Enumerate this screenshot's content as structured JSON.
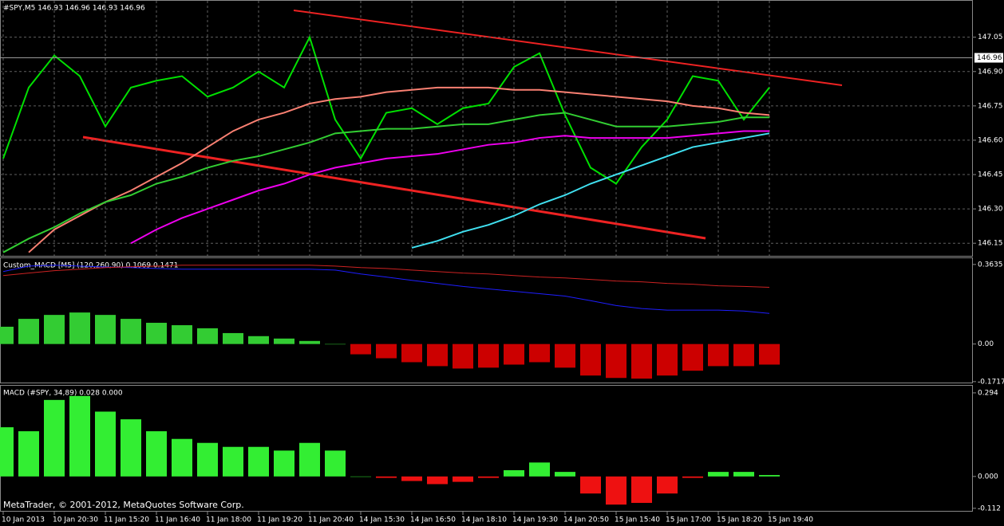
{
  "chart_data": [
    {
      "type": "line",
      "title": "#SPY,M5  146.93 146.96 146.93 146.96",
      "categories": [
        "10 Jan 2013",
        null,
        "10 Jan 20:30",
        null,
        "11 Jan 15:20",
        null,
        "11 Jan 16:40",
        null,
        "11 Jan 18:00",
        null,
        "11 Jan 19:20",
        null,
        "11 Jan 20:40",
        null,
        "14 Jan 15:30",
        null,
        "14 Jan 16:50",
        null,
        "14 Jan 18:10",
        null,
        "14 Jan 19:30",
        null,
        "14 Jan 20:50",
        null,
        "15 Jan 15:40",
        null,
        "15 Jan 17:00",
        null,
        "15 Jan 18:20",
        null,
        "15 Jan 19:40"
      ],
      "series": [
        {
          "color": "#00e000",
          "values": [
            146.52,
            146.83,
            146.97,
            146.88,
            146.66,
            146.83,
            146.86,
            146.88,
            146.79,
            146.83,
            146.9,
            146.83,
            147.05,
            146.69,
            146.52,
            146.72,
            146.74,
            146.67,
            146.74,
            146.76,
            146.92,
            146.98,
            146.71,
            146.48,
            146.41,
            146.57,
            146.69,
            146.88,
            146.86,
            146.69,
            146.83
          ]
        },
        {
          "color": "#fa8072",
          "values": [
            null,
            146.11,
            146.21,
            146.27,
            146.33,
            146.38,
            146.44,
            146.5,
            146.57,
            146.64,
            146.69,
            146.72,
            146.76,
            146.78,
            146.79,
            146.81,
            146.82,
            146.83,
            146.83,
            146.83,
            146.82,
            146.82,
            146.81,
            146.8,
            146.79,
            146.78,
            146.77,
            146.75,
            146.74,
            146.72,
            146.71
          ]
        },
        {
          "color": "#32cd32",
          "values": [
            146.11,
            146.17,
            146.22,
            146.28,
            146.33,
            146.36,
            146.41,
            146.44,
            146.48,
            146.51,
            146.53,
            146.56,
            146.59,
            146.63,
            146.64,
            146.65,
            146.65,
            146.66,
            146.67,
            146.67,
            146.69,
            146.71,
            146.72,
            146.69,
            146.66,
            146.66,
            146.66,
            146.67,
            146.68,
            146.7,
            146.7
          ]
        },
        {
          "color": "#ee00ee",
          "values": [
            null,
            null,
            null,
            null,
            null,
            146.15,
            146.21,
            146.26,
            146.3,
            146.34,
            146.38,
            146.41,
            146.45,
            146.48,
            146.5,
            146.52,
            146.53,
            146.54,
            146.56,
            146.58,
            146.59,
            146.61,
            146.62,
            146.61,
            146.61,
            146.61,
            146.61,
            146.62,
            146.63,
            146.64,
            146.64
          ]
        },
        {
          "color": "#40e0f0",
          "values": [
            null,
            null,
            null,
            null,
            null,
            null,
            null,
            null,
            null,
            null,
            null,
            null,
            null,
            null,
            null,
            null,
            146.13,
            146.16,
            146.2,
            146.23,
            146.27,
            146.32,
            146.36,
            146.41,
            146.45,
            146.49,
            146.53,
            146.57,
            146.59,
            146.61,
            146.63
          ]
        }
      ],
      "ylim": [
        146.095,
        147.209
      ],
      "yticks": [
        146.15,
        {
          "value": 146.3,
          "label": "146.30"
        },
        146.45,
        {
          "value": 146.6,
          "label": "146.60"
        },
        146.75,
        {
          "value": 146.9,
          "label": "146.90"
        },
        147.05
      ],
      "last_price": 146.96,
      "grid": true,
      "footer": "MetaTrader, © 2001-2012, MetaQuotes Software Corp."
    },
    {
      "type": "macd",
      "title": "Custom_MACD [M5] (120,260,90) 0.1069 0.1471",
      "values": [
        0.079,
        0.115,
        0.133,
        0.144,
        0.133,
        0.115,
        0.097,
        0.086,
        0.072,
        0.05,
        0.036,
        0.025,
        0.014,
        0,
        -0.047,
        -0.065,
        -0.083,
        -0.101,
        -0.112,
        -0.108,
        -0.094,
        -0.083,
        -0.108,
        -0.144,
        -0.155,
        -0.158,
        -0.144,
        -0.122,
        -0.101,
        -0.101,
        -0.094
      ],
      "positive_color": "#33cc33",
      "negative_color": "#cc0000",
      "series": [
        {
          "color": "#1e1eff",
          "values": [
            0.331,
            0.356,
            0.36,
            0.356,
            0.352,
            0.349,
            0.345,
            0.342,
            0.342,
            0.342,
            0.342,
            0.342,
            0.342,
            0.338,
            0.32,
            0.306,
            0.291,
            0.277,
            0.263,
            0.252,
            0.241,
            0.23,
            0.219,
            0.198,
            0.176,
            0.162,
            0.155,
            0.155,
            0.155,
            0.151,
            0.14
          ]
        },
        {
          "color": "#cc2222",
          "values": [
            0.313,
            0.324,
            0.335,
            0.342,
            0.349,
            0.353,
            0.356,
            0.36,
            0.36,
            0.36,
            0.36,
            0.36,
            0.36,
            0.356,
            0.349,
            0.345,
            0.338,
            0.331,
            0.324,
            0.32,
            0.313,
            0.306,
            0.302,
            0.295,
            0.288,
            0.284,
            0.277,
            0.273,
            0.266,
            0.263,
            0.259
          ]
        }
      ],
      "ylim": [
        -0.176,
        0.392
      ],
      "yticks": [
        -0.1717,
        {
          "value": 0,
          "label": "0.00"
        },
        0.3635
      ]
    },
    {
      "type": "macd",
      "title": "MACD (#SPY, 34,89) 0.028 0.000",
      "values": [
        0.173,
        0.159,
        0.269,
        0.283,
        0.228,
        0.201,
        0.159,
        0.132,
        0.118,
        0.104,
        0.104,
        0.091,
        0.118,
        0.091,
        0,
        -0.005,
        -0.016,
        -0.027,
        -0.019,
        -0.005,
        0.022,
        0.049,
        0.016,
        -0.06,
        -0.099,
        -0.093,
        -0.06,
        -0.005,
        0.016,
        0.016,
        0.005
      ],
      "positive_color": "#33ee33",
      "negative_color": "#ee1111",
      "series": [],
      "ylim": [
        -0.121,
        0.319
      ],
      "yticks": [
        -0.112,
        {
          "value": 0,
          "label": "0.000"
        },
        0.294
      ]
    }
  ]
}
